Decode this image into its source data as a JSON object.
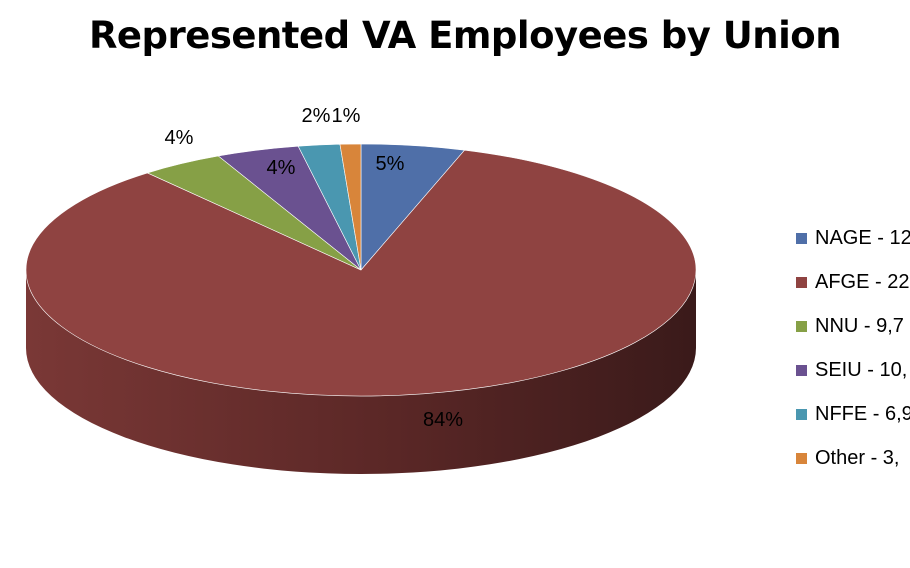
{
  "chart_data": {
    "type": "pie",
    "title": "Represented VA Employees by Union",
    "slices": [
      {
        "label": "5%",
        "legend": "NAGE - 12",
        "percent": 5,
        "color": "#4f6fa8"
      },
      {
        "label": "84%",
        "legend": "AFGE - 22",
        "percent": 84,
        "color": "#8f4341"
      },
      {
        "label": "4%",
        "legend": "NNU - 9,7",
        "percent": 4,
        "color": "#86a046"
      },
      {
        "label": "4%",
        "legend": "SEIU - 10,",
        "percent": 4,
        "color": "#6a5190"
      },
      {
        "label": "2%",
        "legend": "NFFE - 6,9",
        "percent": 2,
        "color": "#4a97b0"
      },
      {
        "label": "1%",
        "legend": "Other - 3,",
        "percent": 1,
        "color": "#d8853a"
      }
    ],
    "legend_position": "right",
    "style": "3d"
  }
}
